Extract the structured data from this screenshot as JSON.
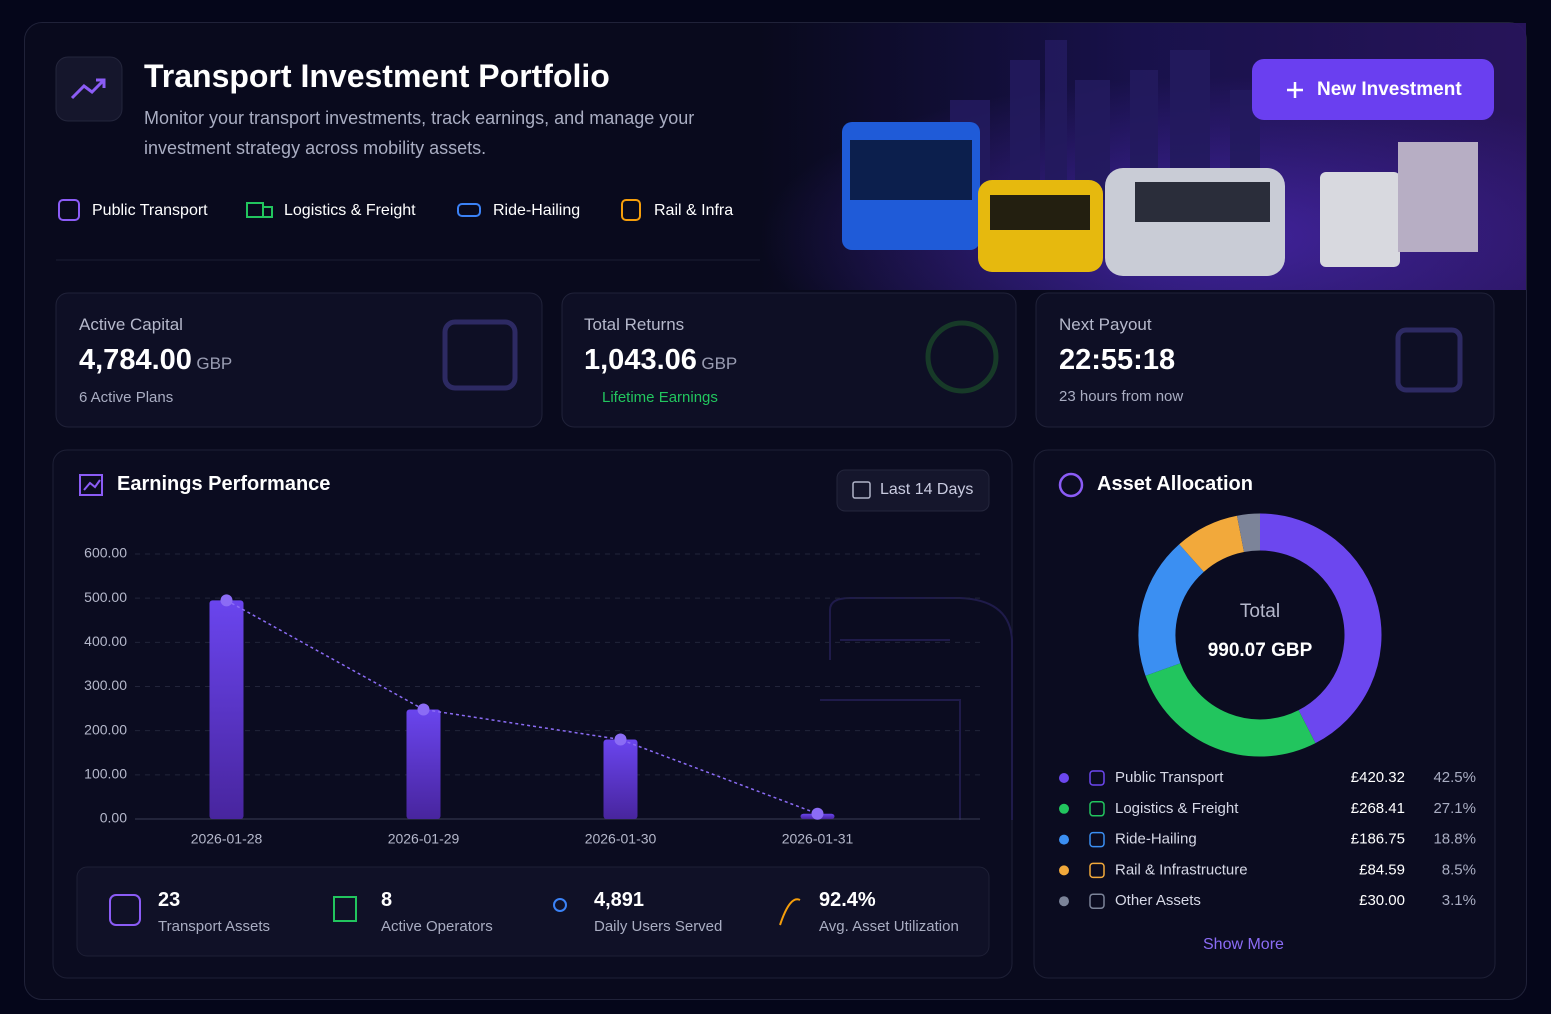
{
  "header": {
    "title": "Transport Investment Portfolio",
    "subtitle": "Monitor your transport investments, track earnings, and manage your investment strategy across mobility assets.",
    "button": "New Investment",
    "tags": [
      "Public Transport",
      "Logistics & Freight",
      "Ride-Hailing",
      "Rail & Infra"
    ]
  },
  "stats": [
    {
      "label": "Active Capital",
      "value": "4,784.00",
      "unit": "GBP",
      "note": "6 Active Plans"
    },
    {
      "label": "Total Returns",
      "value": "1,043.06",
      "unit": "GBP",
      "note": "Lifetime Earnings"
    },
    {
      "label": "Next Payout",
      "value": "22:55:18",
      "note": "23 hours from now"
    }
  ],
  "earnings": {
    "title": "Earnings Performance",
    "range": "Last 14 Days",
    "metrics": [
      {
        "value": "23",
        "label": "Transport Assets"
      },
      {
        "value": "8",
        "label": "Active Operators"
      },
      {
        "value": "4,891",
        "label": "Daily Users Served"
      },
      {
        "value": "92.4%",
        "label": "Avg. Asset Utilization"
      }
    ]
  },
  "allocation": {
    "title": "Asset Allocation",
    "show_more": "Show More"
  },
  "chart_data": [
    {
      "type": "bar",
      "categories": [
        "2026-01-28",
        "2026-01-29",
        "2026-01-30",
        "2026-01-31"
      ],
      "values": [
        495,
        248,
        180,
        12
      ],
      "color": "#6a45ee",
      "trend_line": true,
      "line_color": "#8b6cf5",
      "ylim": [
        0,
        600
      ],
      "yticks": [
        {
          "value": 0,
          "label": "0.00"
        },
        {
          "value": 100,
          "label": "100.00"
        },
        {
          "value": 200,
          "label": "200.00"
        },
        {
          "value": 300,
          "label": "300.00"
        },
        {
          "value": 400,
          "label": "400.00"
        },
        {
          "value": 500,
          "label": "500.00"
        },
        {
          "value": 600,
          "label": "600.00"
        }
      ],
      "grid": true
    },
    {
      "type": "pie",
      "center_label": "Total",
      "center_value": "990.07 GBP",
      "categories": [
        "Public Transport",
        "Logistics & Freight",
        "Ride-Hailing",
        "Rail & Infrastructure",
        "Other Assets"
      ],
      "values": [
        420.32,
        268.41,
        186.75,
        84.59,
        30.0
      ],
      "value_labels": [
        "£420.32",
        "£268.41",
        "£186.75",
        "£84.59",
        "£30.00"
      ],
      "shares": [
        42.5,
        27.1,
        18.8,
        8.5,
        3.1
      ],
      "share_labels": [
        "42.5%",
        "27.1%",
        "18.8%",
        "8.5%",
        "3.1%"
      ],
      "colors": [
        "#6c47ef",
        "#22c55e",
        "#3b8ff2",
        "#f2a93b",
        "#7c8499"
      ]
    }
  ]
}
